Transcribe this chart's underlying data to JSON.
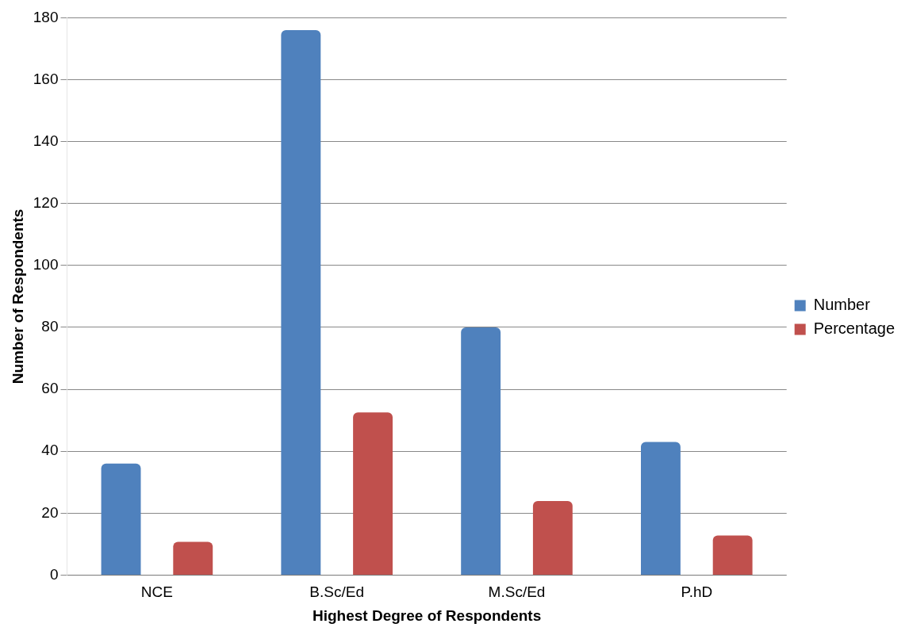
{
  "chart_data": {
    "type": "bar",
    "xlabel": "Highest Degree of Respondents",
    "ylabel": "Number of Respondents",
    "categories": [
      "NCE",
      "B.Sc/Ed",
      "M.Sc/Ed",
      "P.hD"
    ],
    "series": [
      {
        "name": "Number",
        "color": "#4f81bd",
        "values": [
          36,
          176,
          80,
          43
        ]
      },
      {
        "name": "Percentage",
        "color": "#c0504d",
        "values": [
          10.7,
          52.5,
          23.9,
          12.8
        ]
      }
    ],
    "ylim": [
      0,
      180
    ],
    "yticks": [
      0,
      20,
      40,
      60,
      80,
      100,
      120,
      140,
      160,
      180
    ],
    "grid": "y",
    "legend": "right"
  }
}
